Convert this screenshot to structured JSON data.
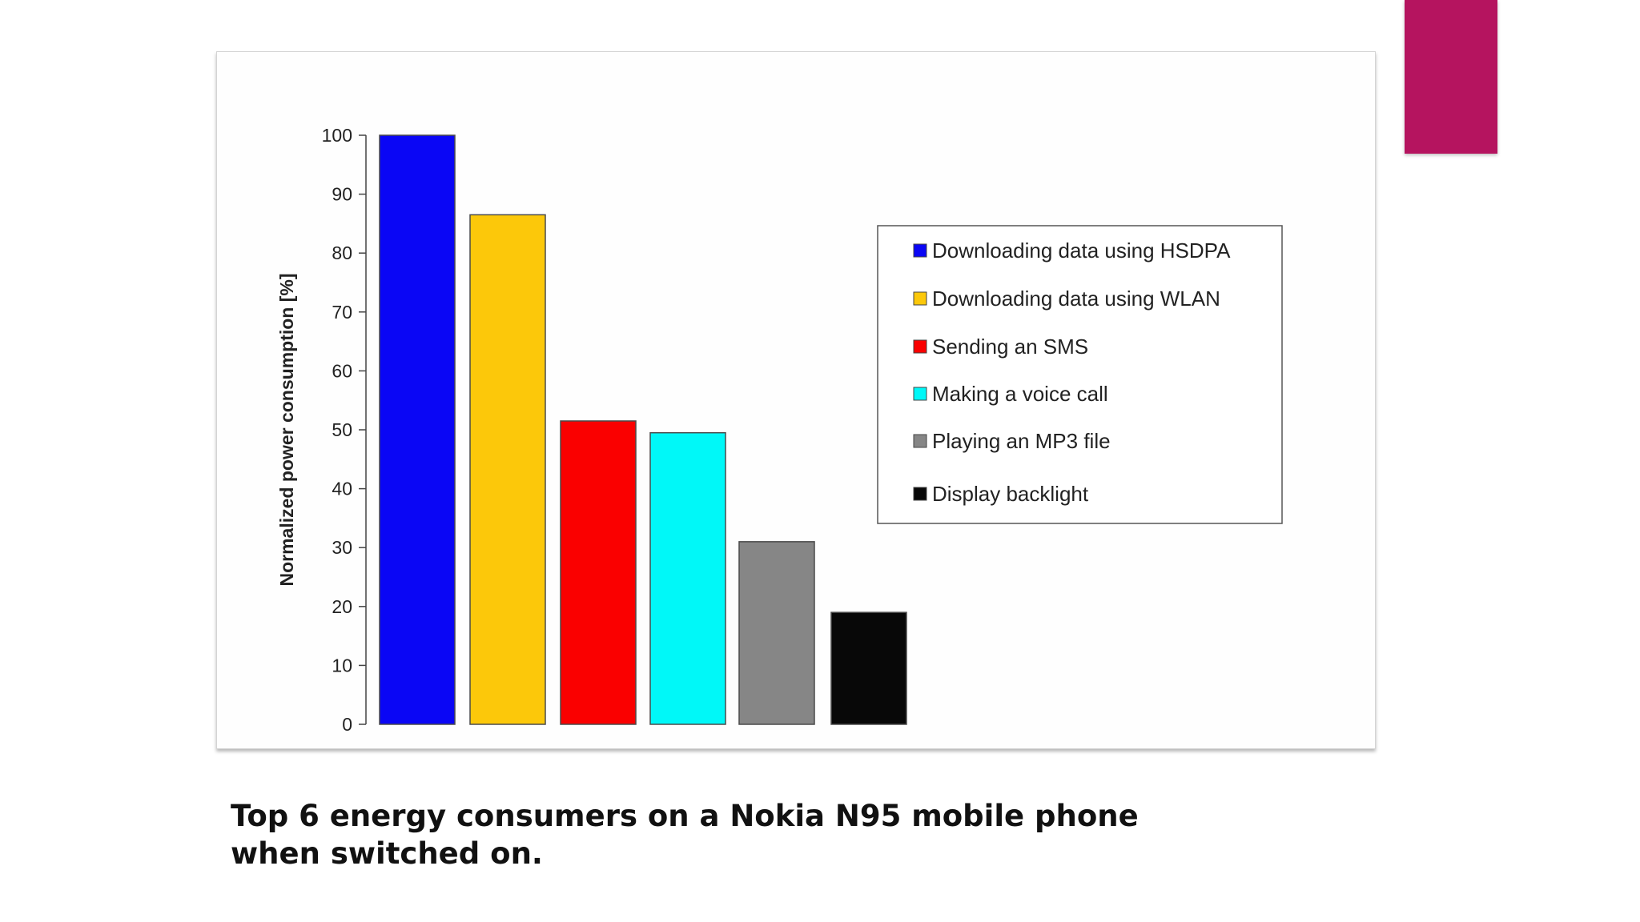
{
  "slide": {
    "accent_color": "#b5145f",
    "caption": "Top 6 energy consumers on a Nokia N95 mobile phone when switched on."
  },
  "chart_data": {
    "type": "bar",
    "title": "",
    "xlabel": "",
    "ylabel": "Normalized power consumption [%]",
    "ylim": [
      0,
      100
    ],
    "yticks": [
      0,
      10,
      20,
      30,
      40,
      50,
      60,
      70,
      80,
      90,
      100
    ],
    "grid": false,
    "legend_position": "top-right",
    "categories": [
      "Downloading data using HSDPA",
      "Downloading data using WLAN",
      "Sending an SMS",
      "Making a voice call",
      "Playing an MP3 file",
      "Display backlight"
    ],
    "values": [
      100,
      86.5,
      51.5,
      49.5,
      31,
      19
    ],
    "colors": [
      "#0a06f5",
      "#fcc80a",
      "#fa0000",
      "#00f8f8",
      "#868686",
      "#080808"
    ]
  }
}
